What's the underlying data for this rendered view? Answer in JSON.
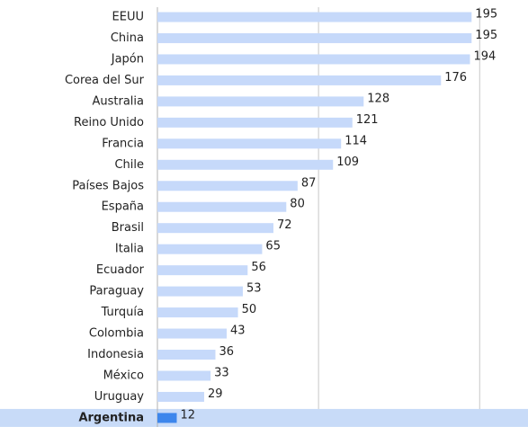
{
  "chart_data": {
    "type": "bar",
    "orientation": "horizontal",
    "categories": [
      "EEUU",
      "China",
      "Japón",
      "Corea del Sur",
      "Australia",
      "Reino Unido",
      "Francia",
      "Chile",
      "Países Bajos",
      "España",
      "Brasil",
      "Italia",
      "Ecuador",
      "Paraguay",
      "Turquía",
      "Colombia",
      "Indonesia",
      "México",
      "Uruguay",
      "Argentina"
    ],
    "values": [
      195,
      195,
      194,
      176,
      128,
      121,
      114,
      109,
      87,
      80,
      72,
      65,
      56,
      53,
      50,
      43,
      36,
      33,
      29,
      12
    ],
    "color": "#c6d9fa",
    "highlight": "Argentina",
    "highlight_color": "#3d86ec",
    "highlight_band_color": "#c8dbf8",
    "xlim": [
      0,
      230
    ],
    "xticks": [
      100,
      200
    ],
    "grid": true
  }
}
